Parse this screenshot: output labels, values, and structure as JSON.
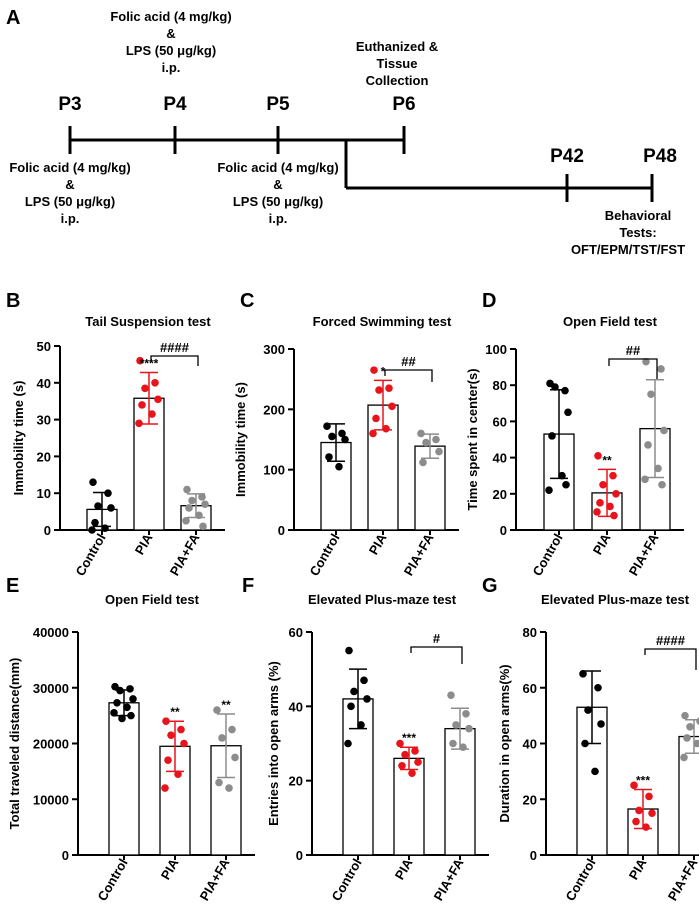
{
  "colors": {
    "control": "#000000",
    "pia": "#e8141c",
    "fa": "#8c8c8c",
    "axis": "#000000"
  },
  "timeline": {
    "panel": "A",
    "points": [
      {
        "key": "p3",
        "label": "P3"
      },
      {
        "key": "p4",
        "label": "P4"
      },
      {
        "key": "p5",
        "label": "P5"
      },
      {
        "key": "p6",
        "label": "P6"
      },
      {
        "key": "p42",
        "label": "P42"
      },
      {
        "key": "p48",
        "label": "P48"
      }
    ],
    "treatment_lines": [
      "Folic acid (4 mg/kg)",
      "&",
      "LPS (50 μg/kg)",
      "i.p."
    ],
    "euth_lines": [
      "Euthanized &",
      "Tissue",
      "Collection"
    ],
    "behav_lines": [
      "Behavioral",
      "Tests:",
      "OFT/EPM/TST/FST"
    ]
  },
  "chart_data": [
    {
      "panel": "B",
      "type": "bar",
      "title": "Tail Suspension test",
      "ylabel": "Immobility time (s)",
      "ylim": [
        0,
        50
      ],
      "yticks": [
        0,
        10,
        20,
        30,
        40,
        50
      ],
      "categories": [
        "Control",
        "PIA",
        "PIA+FA"
      ],
      "means": [
        5.6,
        35.8,
        6.6
      ],
      "sd": [
        4.6,
        7.0,
        3.2
      ],
      "points": [
        [
          13,
          10,
          6.5,
          6,
          2,
          0.5,
          0
        ],
        [
          46,
          40,
          38.5,
          35.5,
          34,
          31.5,
          29
        ],
        [
          11,
          9,
          8,
          7,
          6,
          4,
          2.5,
          1
        ]
      ],
      "stars": [
        "",
        "****",
        ""
      ],
      "comparison": "####"
    },
    {
      "panel": "C",
      "type": "bar",
      "title": "Forced Swimming test",
      "ylabel": "Immobility time (s)",
      "ylim": [
        0,
        300
      ],
      "yticks": [
        0,
        100,
        200,
        300
      ],
      "categories": [
        "Control",
        "PIA",
        "PIA+FA"
      ],
      "means": [
        145,
        207,
        139
      ],
      "sd": [
        31,
        41,
        20
      ],
      "points": [
        [
          172,
          160,
          155,
          150,
          121,
          105
        ],
        [
          265,
          235,
          232,
          205,
          185,
          168,
          160
        ],
        [
          160,
          150,
          145,
          130,
          112
        ]
      ],
      "stars": [
        "",
        "*",
        ""
      ],
      "comparison": "##"
    },
    {
      "panel": "D",
      "type": "bar",
      "title": "Open Field test",
      "ylabel": "Time spent in center(s)",
      "ylim": [
        0,
        100
      ],
      "yticks": [
        0,
        20,
        40,
        60,
        80,
        100
      ],
      "categories": [
        "Control",
        "PIA",
        "PIA+FA"
      ],
      "means": [
        53,
        20.5,
        56
      ],
      "sd": [
        24.5,
        13,
        27
      ],
      "points": [
        [
          81,
          77,
          79,
          65,
          52,
          30,
          22,
          25
        ],
        [
          41,
          30,
          25,
          20,
          15,
          13,
          10,
          8
        ],
        [
          93,
          89,
          75,
          55,
          47,
          34,
          28,
          25
        ]
      ],
      "stars": [
        "",
        "**",
        ""
      ],
      "comparison": "##"
    },
    {
      "panel": "E",
      "type": "bar",
      "title": "Open Field test",
      "ylabel": "Total traveled distance(mm)",
      "ylim": [
        0,
        40000
      ],
      "yticks": [
        0,
        10000,
        20000,
        30000,
        40000
      ],
      "categories": [
        "Control",
        "PIA",
        "PIA+FA"
      ],
      "means": [
        27300,
        19500,
        19600
      ],
      "sd": [
        2300,
        4500,
        5700
      ],
      "points": [
        [
          30200,
          29800,
          29500,
          28000,
          27300,
          26500,
          25500,
          25000,
          24500
        ],
        [
          24000,
          22500,
          21500,
          20000,
          17000,
          14500,
          12000
        ],
        [
          26000,
          22500,
          21000,
          17500,
          13000,
          12000
        ]
      ],
      "stars": [
        "",
        "**",
        "**"
      ],
      "comparison": ""
    },
    {
      "panel": "F",
      "type": "bar",
      "title": "Elevated Plus-maze test",
      "ylabel": "Entries into open arms (%)",
      "ylim": [
        0,
        60
      ],
      "yticks": [
        0,
        20,
        40,
        60
      ],
      "categories": [
        "Control",
        "PIA",
        "PIA+FA"
      ],
      "means": [
        42,
        26,
        34
      ],
      "sd": [
        8,
        3,
        5.5
      ],
      "points": [
        [
          55,
          47,
          44,
          42,
          40,
          35,
          30
        ],
        [
          30,
          28,
          27,
          25,
          24,
          22
        ],
        [
          43,
          38,
          35,
          34,
          30,
          29
        ]
      ],
      "stars": [
        "",
        "***",
        ""
      ],
      "comparison": "#"
    },
    {
      "panel": "G",
      "type": "bar",
      "title": "Elevated Plus-maze test",
      "ylabel": "Duration in open arms(%)",
      "ylim": [
        0,
        80
      ],
      "yticks": [
        0,
        20,
        40,
        60,
        80
      ],
      "categories": [
        "Control",
        "PIA",
        "PIA+FA"
      ],
      "means": [
        53,
        16.5,
        42.5
      ],
      "sd": [
        13,
        7,
        6
      ],
      "points": [
        [
          65,
          60,
          52,
          47,
          40,
          30
        ],
        [
          25,
          21,
          16,
          15,
          12,
          10
        ],
        [
          50,
          48,
          46,
          44,
          42,
          40,
          35
        ]
      ],
      "stars": [
        "",
        "***",
        ""
      ],
      "comparison": "####"
    }
  ]
}
